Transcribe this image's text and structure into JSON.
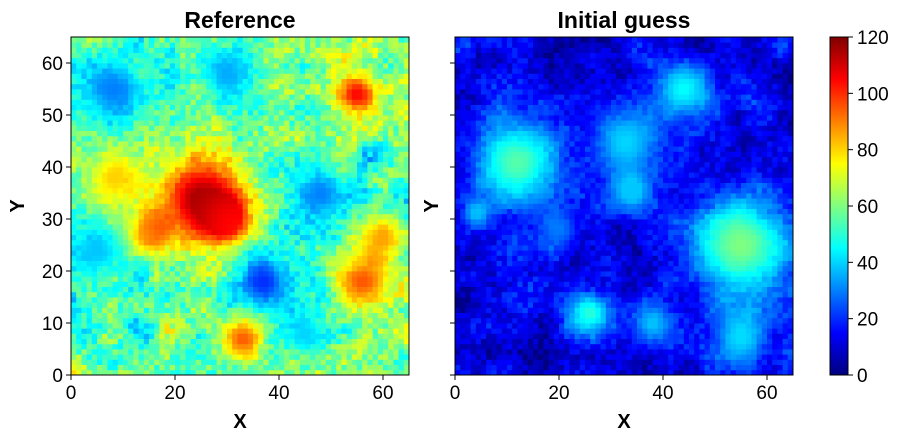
{
  "chart_data": [
    {
      "type": "heatmap",
      "title": "Reference",
      "xlabel": "X",
      "ylabel": "Y",
      "xlim": [
        0,
        65
      ],
      "ylim": [
        0,
        65
      ],
      "xticks": [
        "0",
        "20",
        "40",
        "60"
      ],
      "yticks": [
        "0",
        "10",
        "20",
        "30",
        "40",
        "50",
        "60"
      ],
      "grid_size": 65,
      "colormap": "jet",
      "value_range": [
        0,
        120
      ],
      "features": [
        {
          "x": 25,
          "y": 34,
          "r": 6,
          "value": 115
        },
        {
          "x": 30,
          "y": 30,
          "r": 3,
          "value": 100
        },
        {
          "x": 55,
          "y": 54,
          "r": 3,
          "value": 105
        },
        {
          "x": 56,
          "y": 18,
          "r": 4,
          "value": 95
        },
        {
          "x": 33,
          "y": 7,
          "r": 3,
          "value": 95
        },
        {
          "x": 15,
          "y": 27,
          "r": 3,
          "value": 88
        },
        {
          "x": 60,
          "y": 27,
          "r": 3,
          "value": 85
        },
        {
          "x": 8,
          "y": 38,
          "r": 4,
          "value": 80
        },
        {
          "x": 37,
          "y": 18,
          "r": 4,
          "value": 20
        },
        {
          "x": 8,
          "y": 55,
          "r": 5,
          "value": 30
        },
        {
          "x": 48,
          "y": 35,
          "r": 4,
          "value": 30
        },
        {
          "x": 30,
          "y": 58,
          "r": 4,
          "value": 35
        },
        {
          "x": 5,
          "y": 24,
          "r": 4,
          "value": 38
        },
        {
          "x": 45,
          "y": 8,
          "r": 3,
          "value": 40
        }
      ]
    },
    {
      "type": "heatmap",
      "title": "Initial guess",
      "xlabel": "X",
      "ylabel": "Y",
      "xlim": [
        0,
        65
      ],
      "ylim": [
        0,
        65
      ],
      "xticks": [
        "0",
        "20",
        "40",
        "60"
      ],
      "yticks": [],
      "grid_size": 65,
      "colormap": "jet",
      "value_range": [
        0,
        120
      ],
      "features": [
        {
          "x": 12,
          "y": 41,
          "r": 6,
          "value": 55
        },
        {
          "x": 55,
          "y": 25,
          "r": 7,
          "value": 60
        },
        {
          "x": 33,
          "y": 45,
          "r": 5,
          "value": 40
        },
        {
          "x": 44,
          "y": 55,
          "r": 4,
          "value": 45
        },
        {
          "x": 34,
          "y": 35,
          "r": 3,
          "value": 38
        },
        {
          "x": 55,
          "y": 7,
          "r": 4,
          "value": 40
        },
        {
          "x": 26,
          "y": 12,
          "r": 3,
          "value": 50
        },
        {
          "x": 38,
          "y": 10,
          "r": 3,
          "value": 38
        },
        {
          "x": 4,
          "y": 31,
          "r": 2,
          "value": 35
        },
        {
          "x": 20,
          "y": 28,
          "r": 3,
          "value": 28
        }
      ]
    }
  ],
  "colorbar": {
    "ticks": [
      "0",
      "20",
      "40",
      "60",
      "80",
      "100",
      "120"
    ],
    "range": [
      0,
      120
    ],
    "colormap": "jet"
  }
}
